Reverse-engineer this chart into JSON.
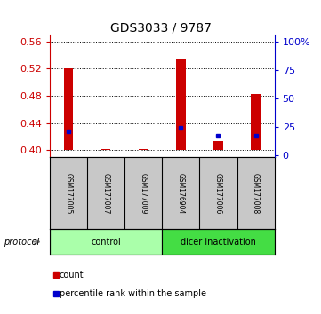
{
  "title": "GDS3033 / 9787",
  "samples": [
    "GSM177005",
    "GSM177007",
    "GSM177009",
    "GSM176904",
    "GSM177006",
    "GSM177008"
  ],
  "red_bar_top": [
    0.52,
    0.4015,
    0.4015,
    0.535,
    0.413,
    0.482
  ],
  "red_bar_bottom": [
    0.4,
    0.4,
    0.4,
    0.4,
    0.4,
    0.4
  ],
  "blue_y": [
    0.428,
    null,
    null,
    0.433,
    0.421,
    0.421
  ],
  "ylim_left": [
    0.39,
    0.57
  ],
  "ylim_right": [
    -1.5625,
    106.25
  ],
  "yticks_left": [
    0.4,
    0.44,
    0.48,
    0.52,
    0.56
  ],
  "yticks_right_vals": [
    0,
    25,
    50,
    75,
    100
  ],
  "yticks_right_labels": [
    "0",
    "25",
    "50",
    "75",
    "100%"
  ],
  "groups": [
    {
      "label": "control",
      "samples": [
        0,
        1,
        2
      ],
      "color": "#aaffaa"
    },
    {
      "label": "dicer inactivation",
      "samples": [
        3,
        4,
        5
      ],
      "color": "#44dd44"
    }
  ],
  "bar_width": 0.25,
  "red_color": "#cc0000",
  "blue_color": "#0000cc",
  "left_axis_color": "#cc0000",
  "right_axis_color": "#0000cc",
  "label_bg_color": "#c8c8c8",
  "legend_red_label": "count",
  "legend_blue_label": "percentile rank within the sample",
  "protocol_label": "protocol"
}
